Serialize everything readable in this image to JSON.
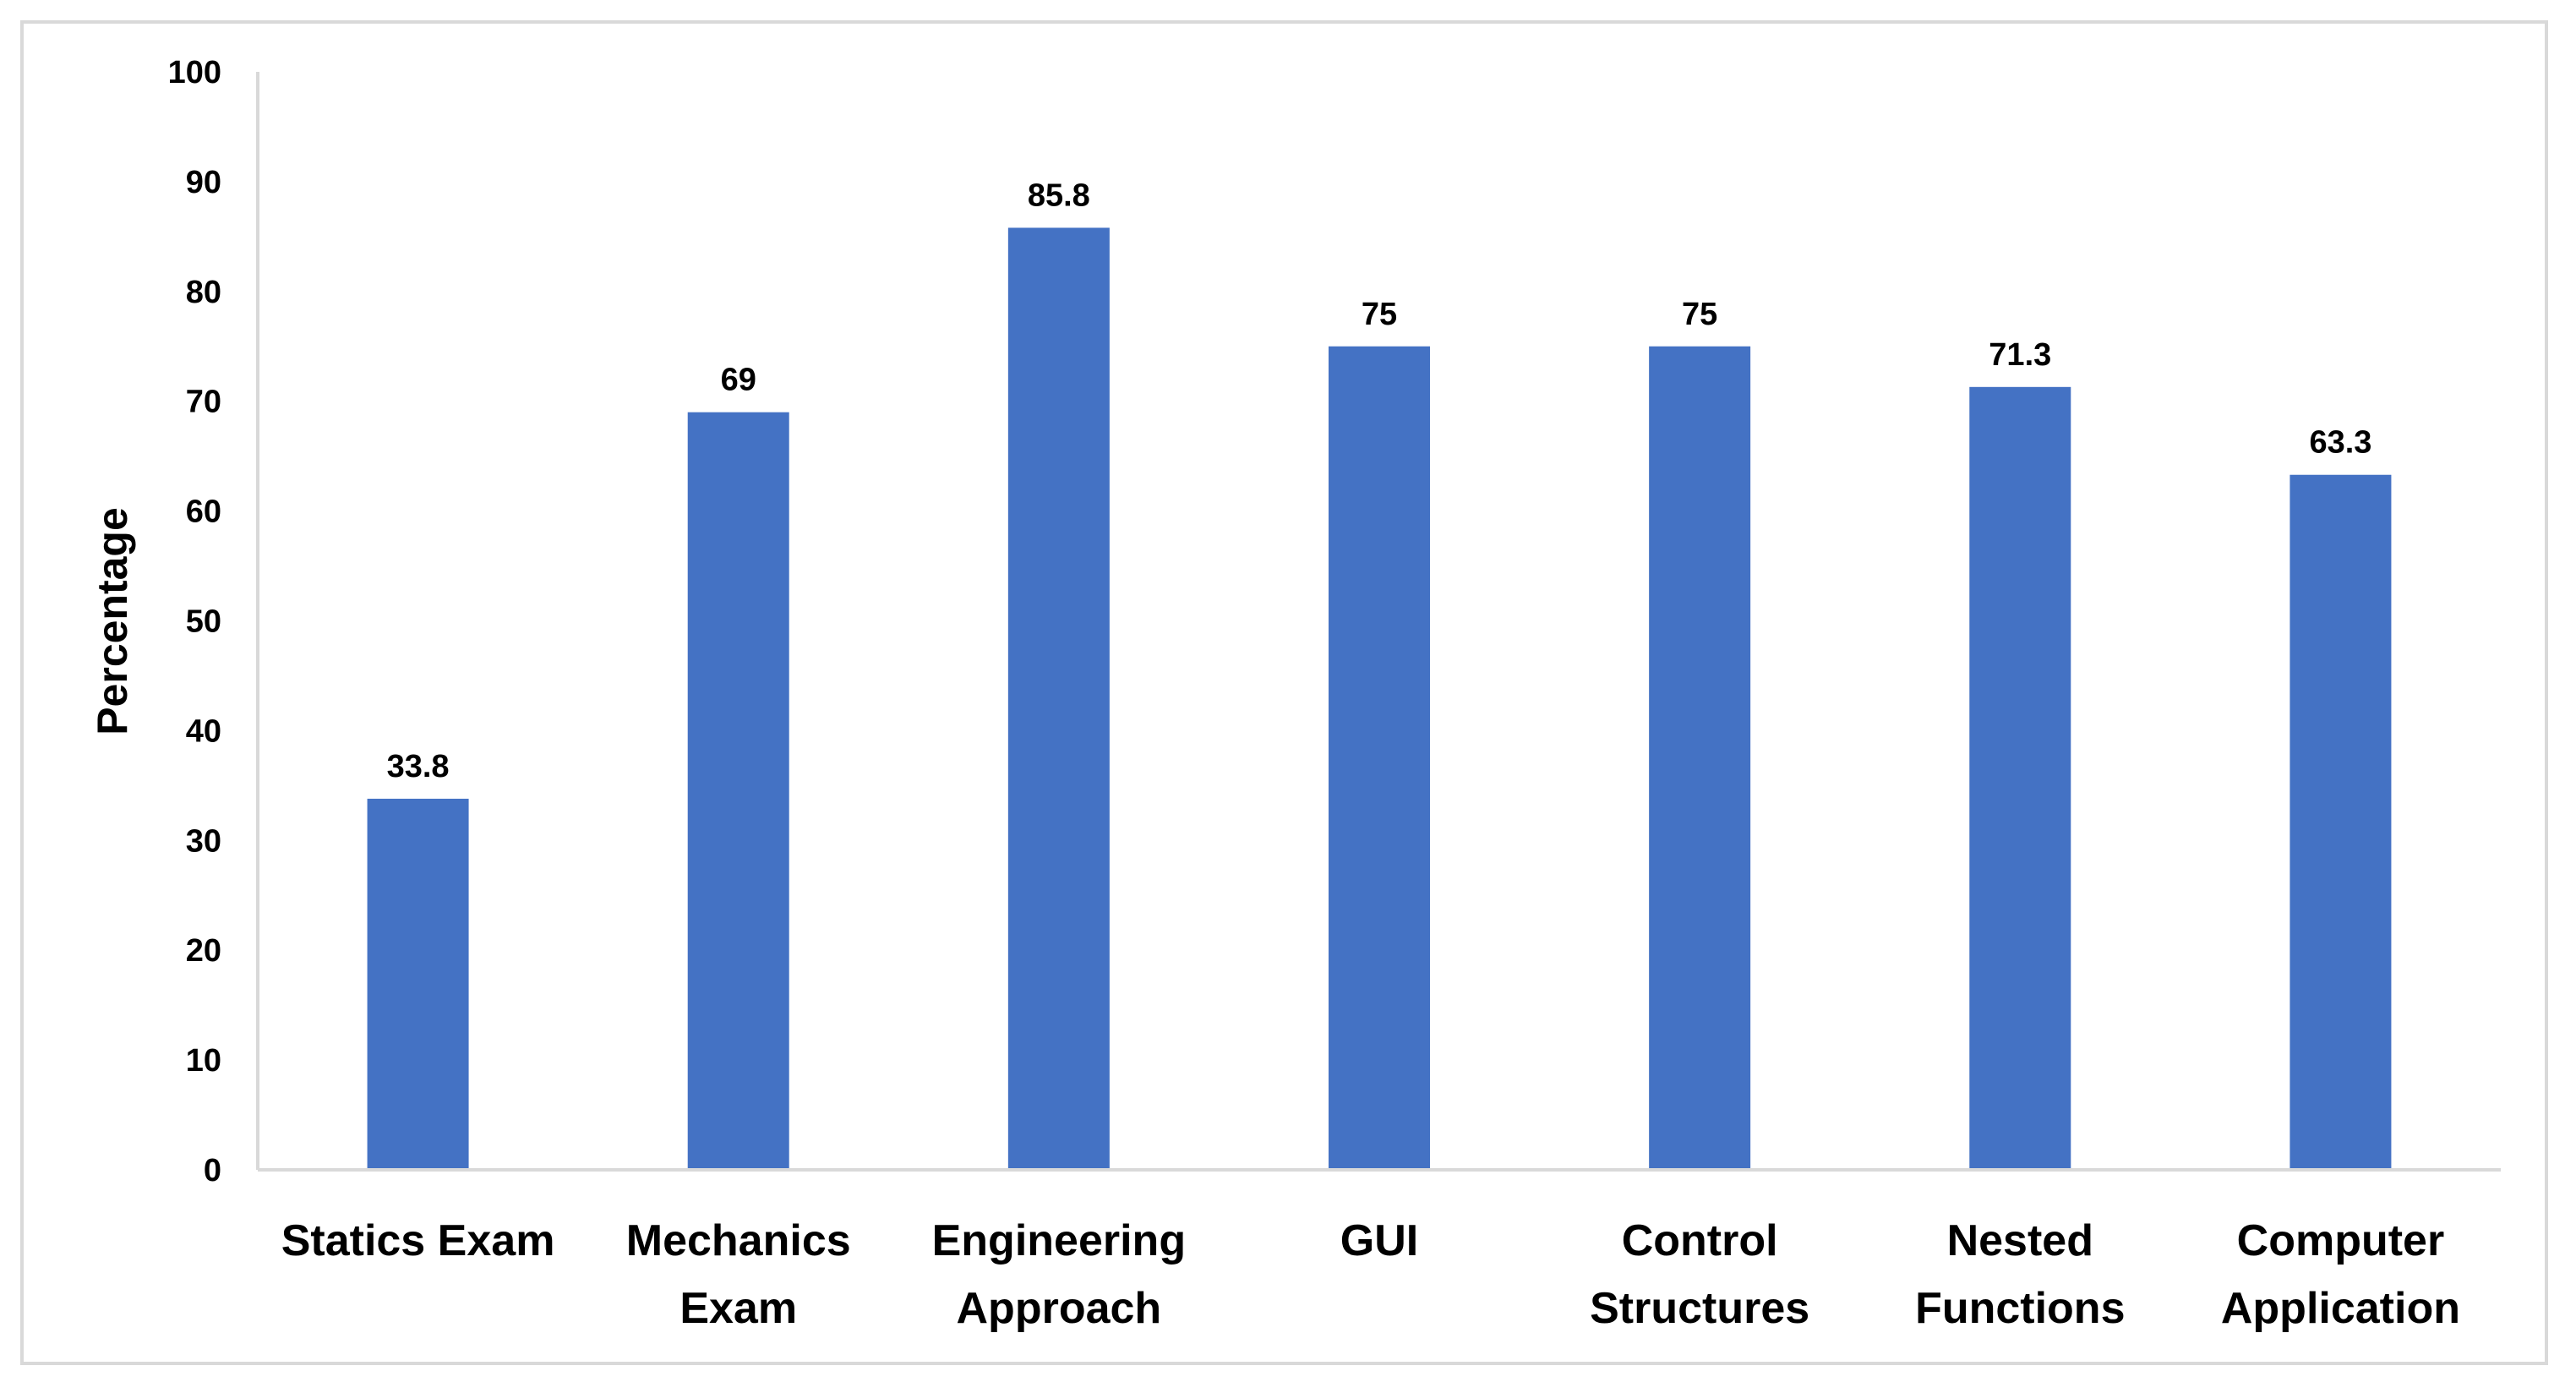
{
  "chart_data": {
    "type": "bar",
    "title": "",
    "xlabel": "",
    "ylabel": "Percentage",
    "ylim": [
      0,
      100
    ],
    "yticks": [
      0,
      10,
      20,
      30,
      40,
      50,
      60,
      70,
      80,
      90,
      100
    ],
    "categories": [
      [
        "Statics Exam"
      ],
      [
        "Mechanics",
        "Exam"
      ],
      [
        "Engineering",
        "Approach"
      ],
      [
        "GUI"
      ],
      [
        "Control",
        "Structures"
      ],
      [
        "Nested",
        "Functions"
      ],
      [
        "Computer",
        "Application"
      ]
    ],
    "values": [
      33.8,
      69,
      85.8,
      75,
      75,
      71.3,
      63.3
    ],
    "data_labels": [
      "33.8",
      "69",
      "85.8",
      "75",
      "75",
      "71.3",
      "63.3"
    ],
    "bar_color": "#4472C4",
    "grid": false,
    "legend": "none"
  }
}
